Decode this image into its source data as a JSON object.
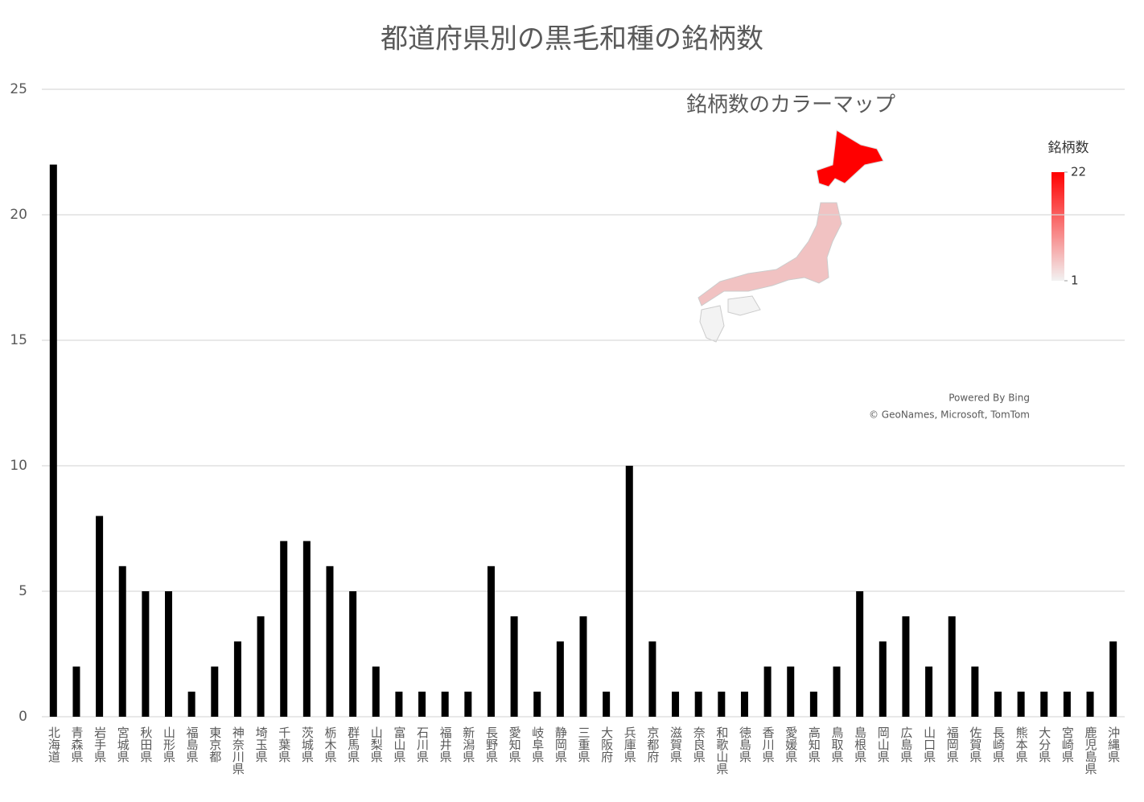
{
  "chart_data": {
    "type": "bar",
    "title": "都道府県別の黒毛和種の銘柄数",
    "categories": [
      "北海道",
      "青森県",
      "岩手県",
      "宮城県",
      "秋田県",
      "山形県",
      "福島県",
      "東京都",
      "神奈川県",
      "埼玉県",
      "千葉県",
      "茨城県",
      "栃木県",
      "群馬県",
      "山梨県",
      "富山県",
      "石川県",
      "福井県",
      "新潟県",
      "長野県",
      "愛知県",
      "岐阜県",
      "静岡県",
      "三重県",
      "大阪府",
      "兵庫県",
      "京都府",
      "滋賀県",
      "奈良県",
      "和歌山県",
      "徳島県",
      "香川県",
      "愛媛県",
      "高知県",
      "鳥取県",
      "島根県",
      "岡山県",
      "広島県",
      "山口県",
      "福岡県",
      "佐賀県",
      "長崎県",
      "熊本県",
      "大分県",
      "宮崎県",
      "鹿児島県",
      "沖縄県"
    ],
    "values": [
      22,
      2,
      8,
      6,
      5,
      5,
      1,
      2,
      3,
      4,
      7,
      7,
      6,
      5,
      2,
      1,
      1,
      1,
      1,
      6,
      4,
      1,
      3,
      4,
      1,
      10,
      3,
      1,
      1,
      1,
      1,
      2,
      2,
      1,
      2,
      5,
      3,
      4,
      2,
      4,
      2,
      1,
      1,
      1,
      1,
      1,
      3
    ],
    "color": "#000000",
    "ylim": [
      0,
      25
    ],
    "yticks": [
      0,
      5,
      10,
      15,
      20,
      25
    ],
    "grid": true,
    "map": {
      "title": "銘柄数のカラーマップ",
      "legend_title": "銘柄数",
      "legend_ticks": [
        1,
        22
      ],
      "low_color": "#f2f2f2",
      "high_color": "#ff0000",
      "credit": "Powered By Bing",
      "copyright": "© GeoNames, Microsoft, TomTom"
    }
  }
}
